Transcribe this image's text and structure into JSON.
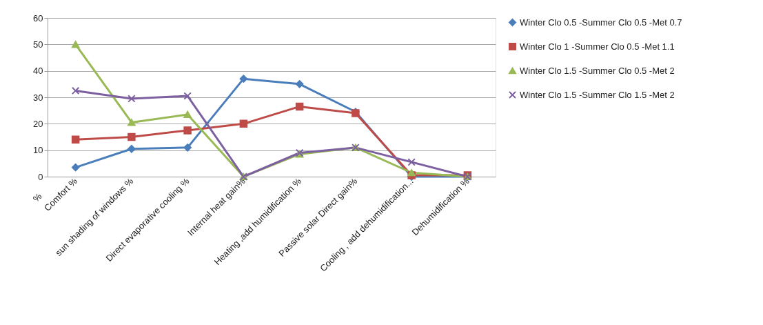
{
  "chart_data": {
    "type": "line",
    "ylabel": "%",
    "categories": [
      "Comfort %",
      "sun shading of windows %",
      "Direct evaporative cooling %",
      "Internal heat gain%",
      "Heating ,add humidification %",
      "Passive solar Direct gain%",
      "Cooling , add dehumidification...",
      "Dehumidification %"
    ],
    "series": [
      {
        "name": "Winter Clo  0.5 -Summer Clo 0.5 -Met 0.7",
        "color": "#4a7ebb",
        "marker": "diamond",
        "values": [
          3.5,
          10.5,
          11,
          37,
          35,
          24.5,
          0,
          0
        ]
      },
      {
        "name": "Winter Clo 1 -Summer Clo 0.5 -Met 1.1",
        "color": "#be4b48",
        "marker": "square",
        "values": [
          14,
          15,
          17.5,
          20,
          26.5,
          24,
          0.5,
          0.5
        ]
      },
      {
        "name": "Winter Clo  1.5 -Summer Clo 0.5 -Met 2",
        "color": "#98b954",
        "marker": "triangle",
        "values": [
          50,
          20.5,
          23.5,
          0,
          8.5,
          11,
          1.5,
          0
        ]
      },
      {
        "name": "Winter Clo  1.5 -Summer Clo 1.5 -Met 2",
        "color": "#7d60a0",
        "marker": "cross",
        "values": [
          32.5,
          29.5,
          30.5,
          0,
          9,
          11,
          5.5,
          0
        ]
      }
    ],
    "ylim": [
      0,
      60
    ],
    "yticks": [
      0,
      10,
      20,
      30,
      40,
      50,
      60
    ],
    "grid": "y",
    "legend": "right"
  }
}
